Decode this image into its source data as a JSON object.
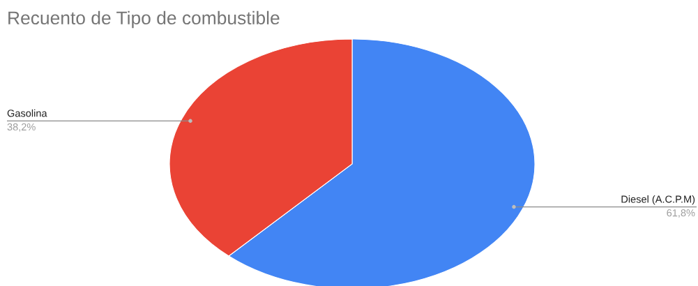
{
  "chart_data": {
    "type": "pie",
    "title": "Recuento de Tipo de combustible",
    "categories": [
      "Diesel (A.C.P.M)",
      "Gasolina"
    ],
    "values": [
      61.8,
      38.2
    ],
    "colors": [
      "#4285f4",
      "#ea4335"
    ],
    "value_labels": [
      "61,8%",
      "38,2%"
    ]
  }
}
